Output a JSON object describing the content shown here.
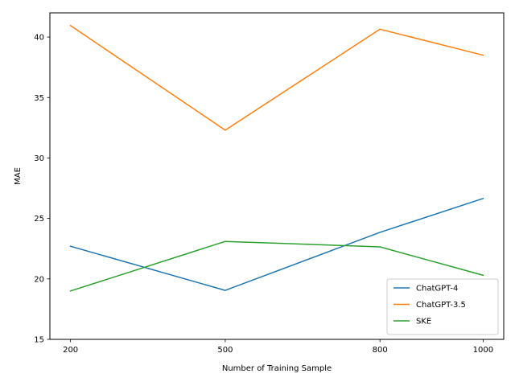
{
  "chart_data": {
    "type": "line",
    "title": "",
    "xlabel": "Number of Training Sample",
    "ylabel": "MAE",
    "x": [
      200,
      500,
      800,
      1000
    ],
    "xlim": [
      160,
      1040
    ],
    "ylim": [
      15,
      42
    ],
    "x_ticks": [
      200,
      500,
      800,
      1000
    ],
    "y_ticks": [
      15,
      20,
      25,
      30,
      35,
      40
    ],
    "grid": false,
    "legend_position": "lower-right",
    "series": [
      {
        "name": "ChatGPT-4",
        "color": "#1f77b4",
        "values": [
          22.7,
          19.05,
          23.85,
          26.65
        ]
      },
      {
        "name": "ChatGPT-3.5",
        "color": "#ff7f0e",
        "values": [
          40.95,
          32.3,
          40.65,
          38.5
        ]
      },
      {
        "name": "SKE",
        "color": "#2ca02c",
        "values": [
          19.0,
          23.1,
          22.65,
          20.3
        ]
      }
    ]
  }
}
